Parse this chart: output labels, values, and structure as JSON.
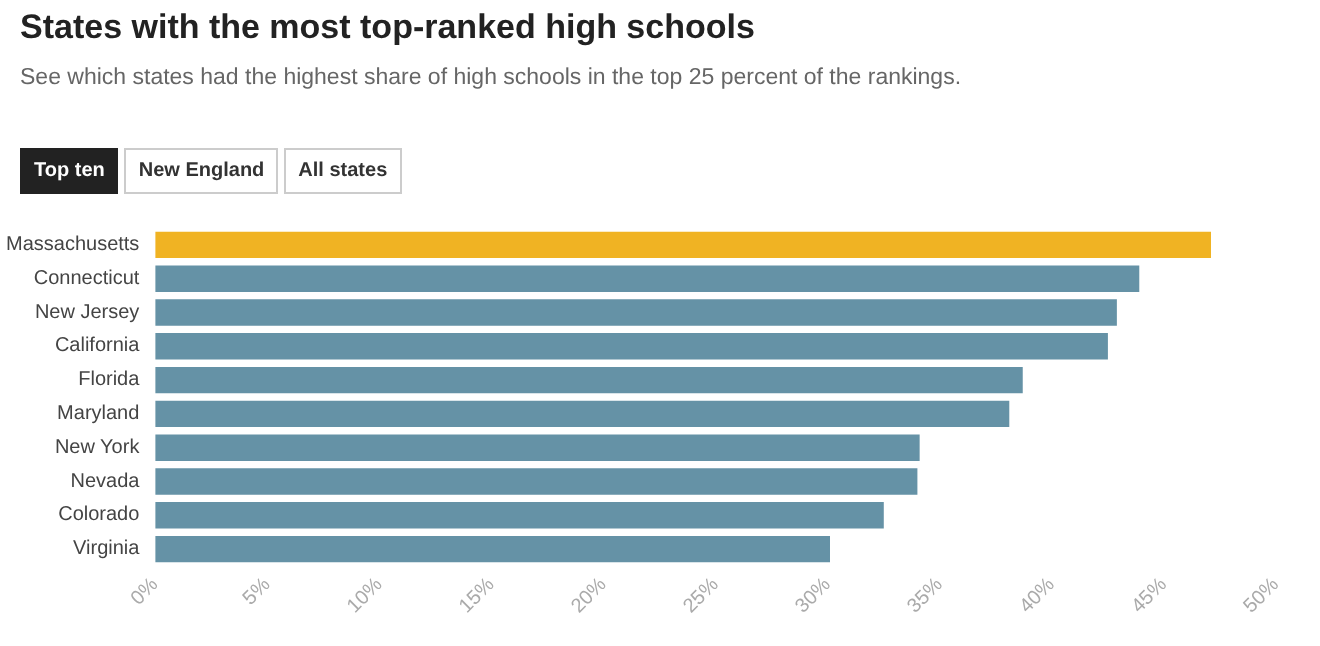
{
  "chart_data": {
    "type": "bar",
    "orientation": "horizontal",
    "title": "States with the most top-ranked high schools",
    "subtitle": "See which states had the highest share of high schools in the top 25 percent of the rankings.",
    "annotations": [
      "Top ten",
      "New England",
      "All states"
    ],
    "categories": [
      "Massachusetts",
      "Connecticut",
      "New Jersey",
      "California",
      "Florida",
      "Maryland",
      "New York",
      "Nevada",
      "Colorado",
      "Virginia"
    ],
    "values": [
      47.1,
      43.9,
      42.9,
      42.5,
      38.7,
      38.1,
      34.1,
      34.0,
      32.5,
      30.1
    ],
    "colors": [
      "#f0b323",
      "#6592a6",
      "#6592a6",
      "#6592a6",
      "#6592a6",
      "#6592a6",
      "#6592a6",
      "#6592a6",
      "#6592a6",
      "#6592a6"
    ],
    "xlim": [
      0,
      50
    ],
    "xticks": [
      {
        "value": 0,
        "label": "0%"
      },
      {
        "value": 5,
        "label": "5%"
      },
      {
        "value": 10,
        "label": "10%"
      },
      {
        "value": 15,
        "label": "15%"
      },
      {
        "value": 20,
        "label": "20%"
      },
      {
        "value": 25,
        "label": "25%"
      },
      {
        "value": 30,
        "label": "30%"
      },
      {
        "value": 35,
        "label": "35%"
      },
      {
        "value": 40,
        "label": "40%"
      },
      {
        "value": 45,
        "label": "45%"
      },
      {
        "value": 50,
        "label": "50%"
      }
    ],
    "grid": false
  }
}
